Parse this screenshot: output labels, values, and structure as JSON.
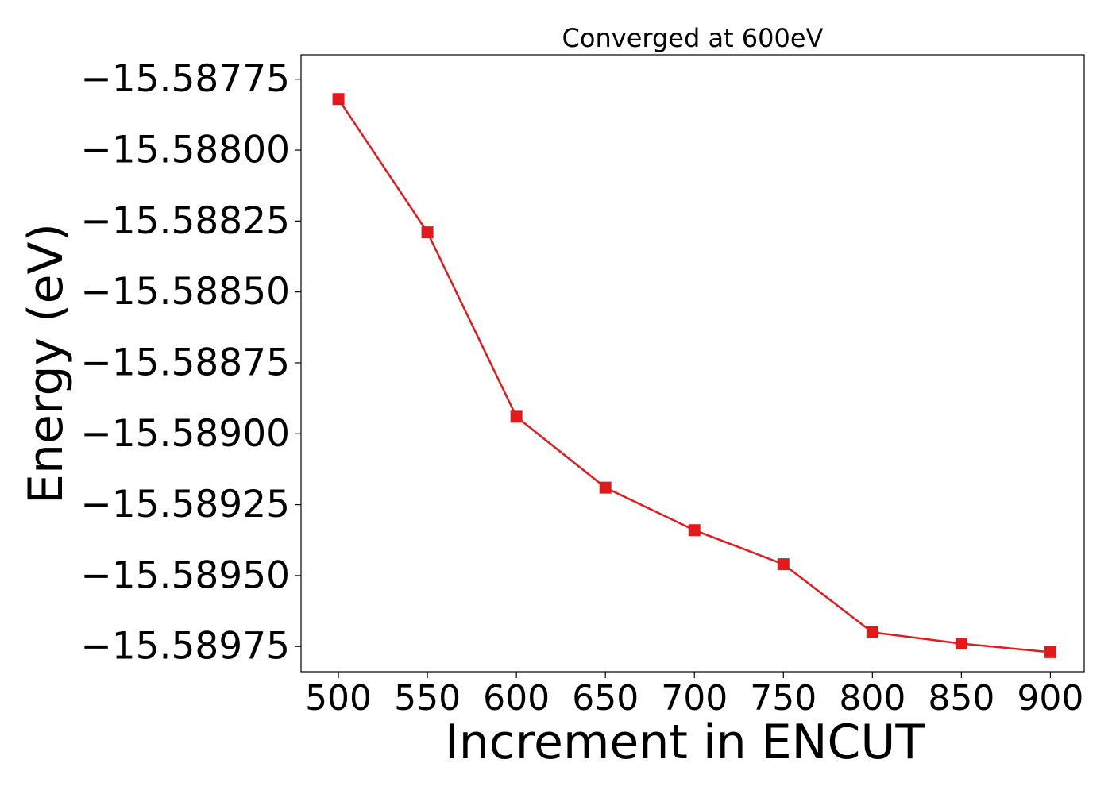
{
  "chart_data": {
    "type": "line",
    "title": "Converged at 600eV",
    "xlabel": "Increment in ENCUT",
    "ylabel": "Energy (eV)",
    "x": [
      500,
      550,
      600,
      650,
      700,
      750,
      800,
      850,
      900
    ],
    "series": [
      {
        "values": [
          -15.58782,
          -15.58829,
          -15.58894,
          -15.58919,
          -15.58934,
          -15.58946,
          -15.5897,
          -15.58974,
          -15.58977
        ],
        "color": "#e31a1c",
        "marker": "square"
      }
    ],
    "xlim": [
      479,
      919
    ],
    "ylim": [
      -15.589839,
      -15.587664
    ],
    "xticks": [
      500,
      550,
      600,
      650,
      700,
      750,
      800,
      850,
      900
    ],
    "xtick_labels": [
      "500",
      "550",
      "600",
      "650",
      "700",
      "750",
      "800",
      "850",
      "900"
    ],
    "yticks": [
      -15.58775,
      -15.588,
      -15.58825,
      -15.5885,
      -15.58875,
      -15.589,
      -15.58925,
      -15.5895,
      -15.58975
    ],
    "ytick_labels": [
      "−15.58775",
      "−15.58800",
      "−15.58825",
      "−15.58850",
      "−15.58875",
      "−15.58900",
      "−15.58925",
      "−15.58950",
      "−15.58975"
    ],
    "grid": false,
    "legend": "none"
  }
}
